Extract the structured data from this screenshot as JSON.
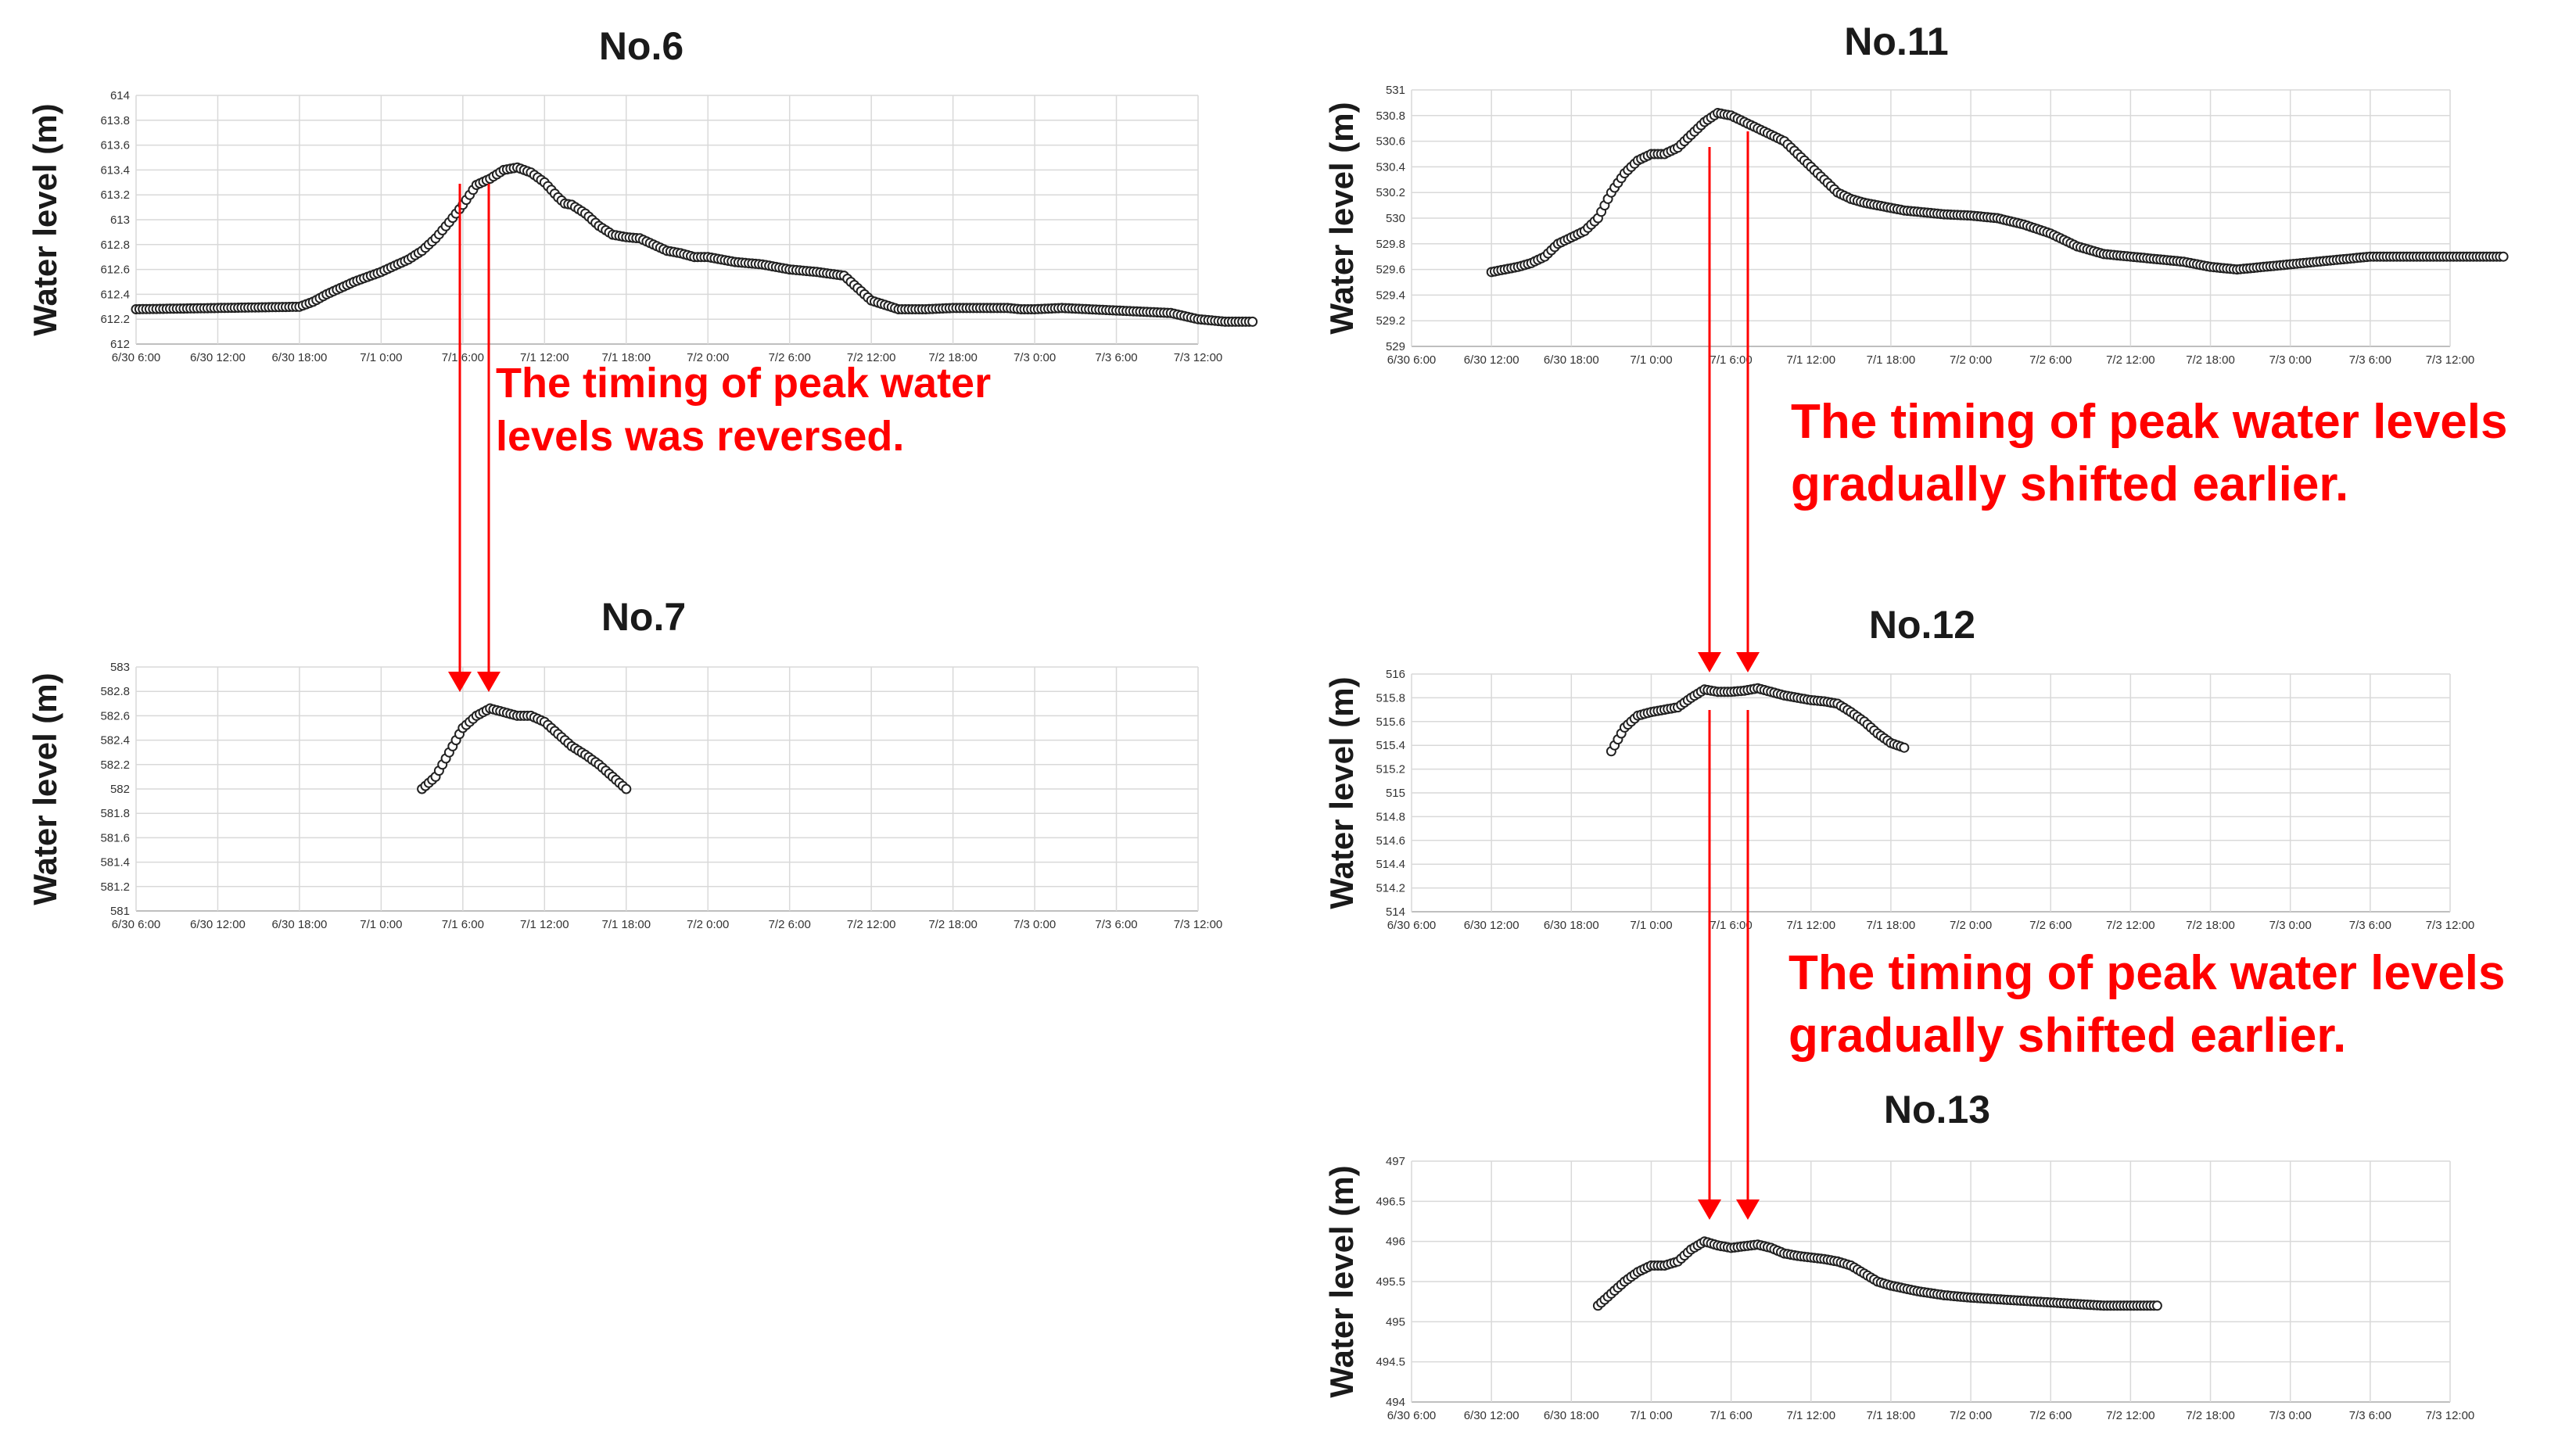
{
  "x_tick_labels": [
    "6/30 6:00",
    "6/30 12:00",
    "6/30 18:00",
    "7/1 0:00",
    "7/1 6:00",
    "7/1 12:00",
    "7/1 18:00",
    "7/2 0:00",
    "7/2 6:00",
    "7/2 12:00",
    "7/2 18:00",
    "7/3 0:00",
    "7/3 6:00",
    "7/3 12:00"
  ],
  "chart_data": [
    {
      "type": "scatter",
      "title": "No.6",
      "ylabel": "Water level (m)",
      "xlim": [
        "6/30 6:00",
        "7/3 12:00"
      ],
      "ylim": [
        612,
        614
      ],
      "yticks": [
        "612",
        "612.2",
        "612.4",
        "612.6",
        "612.8",
        "613",
        "613.2",
        "613.4",
        "613.6",
        "613.8",
        "614"
      ],
      "grid": true,
      "x_hours_since_6_30_6_00": [
        0,
        12,
        13,
        14,
        16,
        18,
        20,
        21,
        22,
        23,
        24,
        25,
        26,
        27,
        28,
        29,
        30,
        31,
        31.5,
        32,
        33,
        34,
        35,
        36,
        37,
        38,
        39,
        40,
        41,
        42,
        43,
        44,
        45,
        46,
        48,
        50,
        52,
        54,
        56,
        58,
        60,
        62,
        63,
        64,
        65,
        66,
        68,
        70,
        72,
        74,
        76,
        78,
        79,
        80,
        81,
        82
      ],
      "y": [
        612.28,
        612.3,
        612.34,
        612.4,
        612.5,
        612.58,
        612.68,
        612.75,
        612.85,
        612.98,
        613.12,
        613.28,
        613.33,
        613.4,
        613.42,
        613.38,
        613.3,
        613.18,
        613.13,
        613.12,
        613.05,
        612.95,
        612.88,
        612.86,
        612.85,
        612.8,
        612.75,
        612.73,
        612.7,
        612.7,
        612.68,
        612.66,
        612.65,
        612.64,
        612.6,
        612.58,
        612.55,
        612.35,
        612.28,
        612.28,
        612.29,
        612.29,
        612.29,
        612.29,
        612.28,
        612.28,
        612.29,
        612.28,
        612.27,
        612.26,
        612.25,
        612.2,
        612.19,
        612.18,
        612.18,
        612.18
      ]
    },
    {
      "type": "scatter",
      "title": "No.7",
      "ylabel": "Water level (m)",
      "xlim": [
        "6/30 6:00",
        "7/3 12:00"
      ],
      "ylim": [
        581,
        583
      ],
      "yticks": [
        "581",
        "581.2",
        "581.4",
        "581.6",
        "581.8",
        "582",
        "582.2",
        "582.4",
        "582.6",
        "582.8",
        "583"
      ],
      "grid": true,
      "x_hours_since_6_30_6_00": [
        21,
        22,
        23,
        24,
        25,
        26,
        27,
        28,
        29,
        30,
        31,
        32,
        33,
        34,
        35,
        36
      ],
      "y": [
        582.0,
        582.1,
        582.3,
        582.5,
        582.6,
        582.66,
        582.63,
        582.6,
        582.6,
        582.55,
        582.45,
        582.35,
        582.28,
        582.2,
        582.1,
        582.0
      ]
    },
    {
      "type": "scatter",
      "title": "No.11",
      "ylabel": "Water level (m)",
      "xlim": [
        "6/30 6:00",
        "7/3 12:00"
      ],
      "ylim": [
        529,
        531
      ],
      "yticks": [
        "529",
        "529.2",
        "529.4",
        "529.6",
        "529.8",
        "530",
        "530.2",
        "530.4",
        "530.6",
        "530.8",
        "531"
      ],
      "grid": true,
      "x_hours_since_6_30_6_00": [
        6,
        7,
        8,
        9,
        10,
        11,
        12,
        13,
        14,
        15,
        16,
        17,
        18,
        19,
        20,
        21,
        22,
        23,
        24,
        25,
        26,
        27,
        28,
        29,
        30,
        31,
        32,
        33,
        34,
        35,
        36,
        37,
        38,
        39,
        40,
        42,
        44,
        46,
        48,
        50,
        52,
        54,
        56,
        58,
        60,
        62,
        64,
        66,
        68,
        70,
        72,
        74,
        76,
        78,
        80,
        82
      ],
      "y": [
        529.58,
        529.6,
        529.62,
        529.65,
        529.7,
        529.8,
        529.85,
        529.9,
        530.0,
        530.2,
        530.35,
        530.45,
        530.5,
        530.5,
        530.55,
        530.65,
        530.75,
        530.82,
        530.8,
        530.75,
        530.7,
        530.65,
        530.6,
        530.5,
        530.4,
        530.3,
        530.2,
        530.15,
        530.12,
        530.1,
        530.08,
        530.06,
        530.05,
        530.04,
        530.03,
        530.02,
        530.0,
        529.95,
        529.88,
        529.78,
        529.72,
        529.7,
        529.68,
        529.66,
        529.62,
        529.6,
        529.62,
        529.64,
        529.66,
        529.68,
        529.7,
        529.7,
        529.7,
        529.7,
        529.7,
        529.7
      ]
    },
    {
      "type": "scatter",
      "title": "No.12",
      "ylabel": "Water level (m)",
      "xlim": [
        "6/30 6:00",
        "7/3 12:00"
      ],
      "ylim": [
        514,
        516
      ],
      "yticks": [
        "514",
        "514.2",
        "514.4",
        "514.6",
        "514.8",
        "515",
        "515.2",
        "515.4",
        "515.6",
        "515.8",
        "516"
      ],
      "grid": true,
      "x_hours_since_6_30_6_00": [
        15,
        16,
        17,
        18,
        19,
        20,
        21,
        22,
        23,
        24,
        25,
        26,
        27,
        28,
        29,
        30,
        31,
        32,
        33,
        34,
        35,
        36,
        37
      ],
      "y": [
        515.35,
        515.55,
        515.65,
        515.68,
        515.7,
        515.72,
        515.8,
        515.87,
        515.85,
        515.85,
        515.86,
        515.88,
        515.85,
        515.82,
        515.8,
        515.78,
        515.77,
        515.75,
        515.68,
        515.6,
        515.5,
        515.42,
        515.38
      ]
    },
    {
      "type": "scatter",
      "title": "No.13",
      "ylabel": "Water level (m)",
      "xlim": [
        "6/30 6:00",
        "7/3 12:00"
      ],
      "ylim": [
        494,
        497
      ],
      "yticks": [
        "494",
        "494.5",
        "495",
        "495.5",
        "496",
        "496.5",
        "497"
      ],
      "grid": true,
      "x_hours_since_6_30_6_00": [
        14,
        15,
        16,
        17,
        18,
        19,
        20,
        21,
        22,
        23,
        24,
        25,
        26,
        27,
        28,
        29,
        30,
        31,
        32,
        33,
        34,
        35,
        36,
        38,
        40,
        42,
        44,
        46,
        48,
        50,
        52,
        54,
        56
      ],
      "y": [
        495.2,
        495.35,
        495.5,
        495.62,
        495.7,
        495.7,
        495.75,
        495.9,
        496.0,
        495.95,
        495.92,
        495.94,
        495.96,
        495.92,
        495.85,
        495.82,
        495.8,
        495.78,
        495.75,
        495.7,
        495.6,
        495.5,
        495.45,
        495.38,
        495.33,
        495.3,
        495.28,
        495.26,
        495.24,
        495.22,
        495.2,
        495.2,
        495.2
      ]
    }
  ],
  "annotations": [
    {
      "lines": [
        "The timing of peak water",
        "levels was reversed."
      ]
    },
    {
      "lines": [
        "The timing of peak water levels",
        "gradually shifted earlier."
      ]
    },
    {
      "lines": [
        "The timing of peak water levels",
        "gradually shifted earlier."
      ]
    }
  ],
  "colors": {
    "marker_stroke": "#222222",
    "arrow": "#ff0000",
    "grid": "#d9d9d9"
  }
}
